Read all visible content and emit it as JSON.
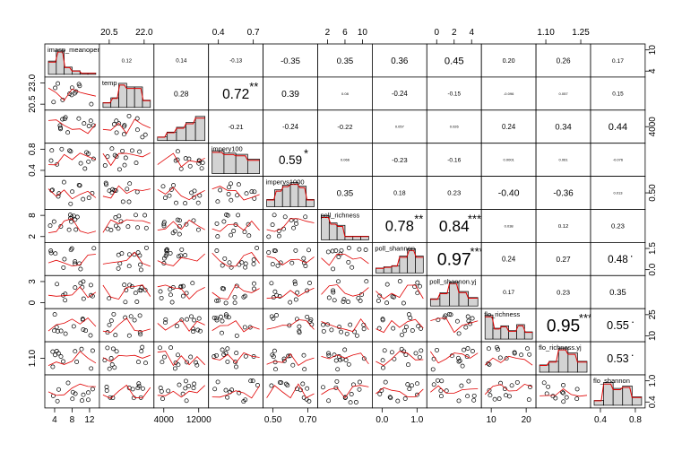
{
  "chart_data": {
    "type": "scatter",
    "title": "",
    "variables": [
      "imasp_meanopen",
      "temp",
      "",
      "impery100",
      "impervs1000",
      "poll_richness",
      "poll_shannon",
      "poll_shannon.yj",
      "flo_richness",
      "flo_richness.yj",
      "flo_shannon"
    ],
    "diag_labels": [
      "imasp_meanopen",
      "temp",
      "",
      "impery100",
      "impervs1000",
      "poll_richness",
      "poll_shannon",
      "poll_shannon.yj",
      "flo_richness",
      "flo_richness.yj",
      "flo_shannon"
    ],
    "correlations": [
      [
        null,
        "0.12",
        "0.14",
        "-0.13",
        "-0.35",
        "0.35",
        "0.36",
        "0.45",
        "0.20",
        "0.26",
        "0.17"
      ],
      [
        null,
        null,
        "0.28",
        "0.72",
        "0.39",
        "0.08",
        "-0.24",
        "-0.15",
        "-0.096",
        "0.057",
        "0.15"
      ],
      [
        null,
        null,
        null,
        "-0.21",
        "-0.24",
        "-0.22",
        "0.057",
        "0.026",
        "0.24",
        "0.34",
        "0.44"
      ],
      [
        null,
        null,
        null,
        null,
        "0.59",
        "0.066",
        "-0.23",
        "-0.16",
        "0.0001",
        "0.061",
        "-0.076"
      ],
      [
        null,
        null,
        null,
        null,
        null,
        "0.35",
        "0.18",
        "0.23",
        "-0.40",
        "-0.36",
        "0.013"
      ],
      [
        null,
        null,
        null,
        null,
        null,
        null,
        "0.78",
        "0.84",
        "0.038",
        "0.12",
        "0.23"
      ],
      [
        null,
        null,
        null,
        null,
        null,
        null,
        null,
        "0.97",
        "0.24",
        "0.27",
        "0.48"
      ],
      [
        null,
        null,
        null,
        null,
        null,
        null,
        null,
        null,
        "0.17",
        "0.23",
        "0.35"
      ],
      [
        null,
        null,
        null,
        null,
        null,
        null,
        null,
        null,
        null,
        "0.95",
        "0.55"
      ],
      [
        null,
        null,
        null,
        null,
        null,
        null,
        null,
        null,
        null,
        null,
        "0.53"
      ],
      [
        null,
        null,
        null,
        null,
        null,
        null,
        null,
        null,
        null,
        null,
        null
      ]
    ],
    "stars": [
      [
        null,
        "",
        "",
        "",
        "",
        "",
        "",
        "",
        "",
        "",
        ""
      ],
      [
        null,
        null,
        "",
        "**",
        "",
        "",
        "",
        "",
        "",
        "",
        ""
      ],
      [
        null,
        null,
        null,
        "",
        "",
        "",
        "",
        "",
        "",
        "",
        ""
      ],
      [
        null,
        null,
        null,
        null,
        "*",
        "",
        "",
        "",
        "",
        "",
        ""
      ],
      [
        null,
        null,
        null,
        null,
        null,
        "",
        "",
        "",
        "",
        "",
        ""
      ],
      [
        null,
        null,
        null,
        null,
        null,
        null,
        "**",
        "***",
        "",
        "",
        ""
      ],
      [
        null,
        null,
        null,
        null,
        null,
        null,
        null,
        "***",
        "",
        "",
        "."
      ],
      [
        null,
        null,
        null,
        null,
        null,
        null,
        null,
        null,
        "",
        "",
        ""
      ],
      [
        null,
        null,
        null,
        null,
        null,
        null,
        null,
        null,
        null,
        "***",
        "."
      ],
      [
        null,
        null,
        null,
        null,
        null,
        null,
        null,
        null,
        null,
        null,
        "."
      ],
      [
        null,
        null,
        null,
        null,
        null,
        null,
        null,
        null,
        null,
        null,
        null
      ]
    ],
    "axes": {
      "top": [
        {
          "col": 1,
          "ticks": [
            "20.5",
            "22.0"
          ]
        },
        {
          "col": 3,
          "ticks": [
            "0.4",
            "0.7"
          ]
        },
        {
          "col": 5,
          "ticks": [
            "2",
            "6",
            "10"
          ]
        },
        {
          "col": 7,
          "ticks": [
            "0",
            "2",
            "4"
          ]
        },
        {
          "col": 9,
          "ticks": [
            "1.10",
            "1.25"
          ]
        }
      ],
      "bottom": [
        {
          "col": 0,
          "ticks": [
            "4",
            "8",
            "12"
          ]
        },
        {
          "col": 2,
          "ticks": [
            "4000",
            "12000"
          ]
        },
        {
          "col": 4,
          "ticks": [
            "0.50",
            "0.70"
          ]
        },
        {
          "col": 6,
          "ticks": [
            "0.0",
            "1.0"
          ]
        },
        {
          "col": 8,
          "ticks": [
            "10",
            "20"
          ]
        },
        {
          "col": 10,
          "ticks": [
            "0.4",
            "0.8"
          ]
        }
      ],
      "left": [
        {
          "row": 1,
          "ticks": [
            "20.5",
            "23.0"
          ]
        },
        {
          "row": 3,
          "ticks": [
            "0.4",
            "0.8"
          ]
        },
        {
          "row": 5,
          "ticks": [
            "2",
            "8"
          ]
        },
        {
          "row": 7,
          "ticks": [
            "0",
            "3"
          ]
        },
        {
          "row": 9,
          "ticks": [
            "1.10"
          ]
        }
      ],
      "right": [
        {
          "row": 0,
          "ticks": [
            "4",
            "10"
          ]
        },
        {
          "row": 2,
          "ticks": [
            "4000"
          ]
        },
        {
          "row": 4,
          "ticks": [
            "0.50"
          ]
        },
        {
          "row": 6,
          "ticks": [
            "0.0",
            "1.5"
          ]
        },
        {
          "row": 8,
          "ticks": [
            "10",
            "25"
          ]
        },
        {
          "row": 10,
          "ticks": [
            "0.4",
            "1.0"
          ]
        }
      ]
    },
    "histograms": [
      [
        0.55,
        1.0,
        0.3,
        0.15,
        0.05,
        0.05
      ],
      [
        0.2,
        0.4,
        1.0,
        0.85,
        0.85,
        0.3
      ],
      [
        0.15,
        0.35,
        0.55,
        0.75,
        1.0
      ],
      [
        0.95,
        0.85,
        0.8,
        0.6
      ],
      [
        0.3,
        0.7,
        0.9,
        1.0,
        0.85,
        0.3
      ],
      [
        1.0,
        0.7,
        0.6,
        0.15,
        0.15,
        0.15
      ],
      [
        0.2,
        0.25,
        0.3,
        0.7,
        1.0,
        0.7
      ],
      [
        0.3,
        0.55,
        1.0,
        0.6,
        0.35
      ],
      [
        1.0,
        0.45,
        0.55,
        0.35,
        0.6,
        0.3
      ],
      [
        0.3,
        0.45,
        1.0,
        0.8,
        0.45
      ],
      [
        0.2,
        0.95,
        0.7,
        0.8,
        0.35
      ]
    ]
  }
}
